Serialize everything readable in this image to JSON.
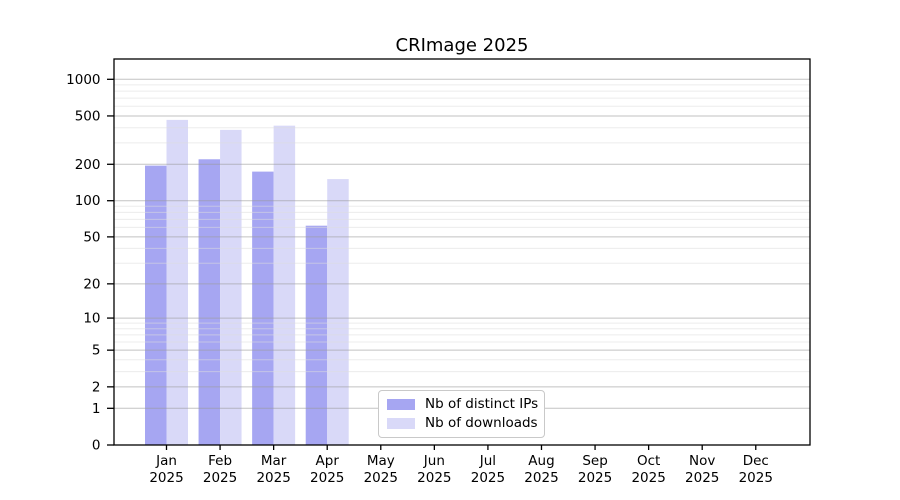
{
  "title": "CRImage 2025",
  "chart_data": {
    "type": "bar",
    "title": "CRImage 2025",
    "categories": [
      "Jan",
      "Feb",
      "Mar",
      "Apr",
      "May",
      "Jun",
      "Jul",
      "Aug",
      "Sep",
      "Oct",
      "Nov",
      "Dec"
    ],
    "year_suffix": "2025",
    "series": [
      {
        "name": "Nb of distinct IPs",
        "color": "#a6a6f2",
        "values": [
          195,
          220,
          174,
          62,
          null,
          null,
          null,
          null,
          null,
          null,
          null,
          null
        ]
      },
      {
        "name": "Nb of downloads",
        "color": "#d9d9f8",
        "values": [
          464,
          384,
          416,
          151,
          null,
          null,
          null,
          null,
          null,
          null,
          null,
          null
        ]
      }
    ],
    "y_axis": {
      "scale": "log1p",
      "tick_values": [
        0,
        1,
        2,
        5,
        10,
        20,
        50,
        100,
        200,
        500,
        1000
      ],
      "tick_labels": [
        "0",
        "1",
        "2",
        "5",
        "10",
        "20",
        "50",
        "100",
        "200",
        "500",
        "1000"
      ],
      "minor_tick_values": [
        3,
        4,
        6,
        7,
        8,
        9,
        30,
        40,
        60,
        70,
        80,
        90,
        300,
        400,
        600,
        700,
        800,
        900
      ],
      "top_value": 1468
    },
    "x_axis": {
      "label_line2": "2025"
    },
    "grid": true,
    "legend_position": "lower center",
    "colors": {
      "grid_major": "#9b9b9b",
      "grid_minor": "#dedede",
      "axis": "#000000",
      "background": "#ffffff"
    }
  }
}
